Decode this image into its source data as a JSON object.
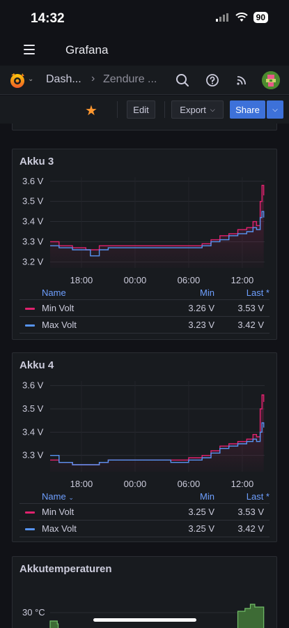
{
  "status_bar": {
    "time": "14:32",
    "battery": "90"
  },
  "app_bar": {
    "title": "Grafana"
  },
  "nav": {
    "crumb_1": "Dash...",
    "crumb_sep": "›",
    "crumb_2": "Zendure ..."
  },
  "toolbar": {
    "edit_label": "Edit",
    "export_label": "Export",
    "share_label": "Share"
  },
  "colors": {
    "min_series": "#e0226e",
    "max_series": "#5794f2",
    "temp_series": "#73bf69",
    "accent": "#3d71d9",
    "star": "#ff9830"
  },
  "panels": [
    {
      "title": "Akku 3",
      "legend": {
        "name_header": "Name",
        "min_header": "Min",
        "last_header": "Last *",
        "rows": [
          {
            "name": "Min Volt",
            "min": "3.26 V",
            "last": "3.53 V"
          },
          {
            "name": "Max Volt",
            "min": "3.23 V",
            "last": "3.42 V"
          }
        ]
      }
    },
    {
      "title": "Akku 4",
      "legend": {
        "name_header": "Name",
        "min_header": "Min",
        "last_header": "Last *",
        "rows": [
          {
            "name": "Min Volt",
            "min": "3.25 V",
            "last": "3.53 V"
          },
          {
            "name": "Max Volt",
            "min": "3.25 V",
            "last": "3.42 V"
          }
        ]
      }
    },
    {
      "title": "Akkutemperaturen"
    }
  ],
  "chart_data": [
    {
      "type": "line",
      "title": "Akku 3",
      "x_ticks": [
        "18:00",
        "00:00",
        "06:00",
        "12:00"
      ],
      "y_ticks": [
        "3.6 V",
        "3.5 V",
        "3.4 V",
        "3.3 V",
        "3.2 V"
      ],
      "ylim": [
        3.17,
        3.62
      ],
      "x_range_hours": [
        14.5,
        38.5
      ],
      "series": [
        {
          "name": "Min Volt",
          "x": [
            14.5,
            15.5,
            17,
            18.5,
            20,
            21,
            22,
            24,
            26,
            28,
            30,
            31.5,
            32.5,
            33.5,
            34.5,
            35.5,
            36.5,
            37.2,
            37.6,
            38,
            38.2,
            38.4
          ],
          "y": [
            3.3,
            3.28,
            3.27,
            3.26,
            3.28,
            3.28,
            3.28,
            3.28,
            3.28,
            3.28,
            3.28,
            3.29,
            3.31,
            3.33,
            3.34,
            3.36,
            3.37,
            3.4,
            3.38,
            3.5,
            3.58,
            3.53
          ]
        },
        {
          "name": "Max Volt",
          "x": [
            14.5,
            15.5,
            17,
            18.5,
            19,
            20,
            21,
            22,
            24,
            26,
            28,
            30,
            31.5,
            32.5,
            33.5,
            34.5,
            35.5,
            36.5,
            37.2,
            37.6,
            38,
            38.2,
            38.4
          ],
          "y": [
            3.28,
            3.27,
            3.26,
            3.26,
            3.23,
            3.26,
            3.27,
            3.27,
            3.27,
            3.27,
            3.27,
            3.27,
            3.28,
            3.3,
            3.31,
            3.33,
            3.34,
            3.35,
            3.37,
            3.36,
            3.42,
            3.45,
            3.42
          ]
        }
      ]
    },
    {
      "type": "line",
      "title": "Akku 4",
      "x_ticks": [
        "18:00",
        "00:00",
        "06:00",
        "12:00"
      ],
      "y_ticks": [
        "3.6 V",
        "3.5 V",
        "3.4 V",
        "3.3 V"
      ],
      "ylim": [
        3.23,
        3.62
      ],
      "x_range_hours": [
        14.5,
        38.5
      ],
      "series": [
        {
          "name": "Min Volt",
          "x": [
            14.5,
            15.5,
            17,
            18.5,
            20,
            21,
            22,
            24,
            26,
            28,
            30,
            31.5,
            32.5,
            33.5,
            34.5,
            35.5,
            36.5,
            37.2,
            37.6,
            38,
            38.2,
            38.4
          ],
          "y": [
            3.28,
            3.27,
            3.26,
            3.26,
            3.27,
            3.28,
            3.28,
            3.28,
            3.28,
            3.28,
            3.29,
            3.3,
            3.32,
            3.34,
            3.35,
            3.36,
            3.37,
            3.39,
            3.38,
            3.5,
            3.56,
            3.53
          ]
        },
        {
          "name": "Max Volt",
          "x": [
            14.5,
            15.5,
            17,
            18.5,
            20,
            21,
            22,
            24,
            26,
            28,
            30,
            31.5,
            32.5,
            33.5,
            34.5,
            35.5,
            36.5,
            37.2,
            37.6,
            38,
            38.2,
            38.4
          ],
          "y": [
            3.3,
            3.27,
            3.26,
            3.26,
            3.27,
            3.28,
            3.28,
            3.28,
            3.28,
            3.27,
            3.28,
            3.29,
            3.31,
            3.33,
            3.34,
            3.35,
            3.36,
            3.37,
            3.36,
            3.4,
            3.44,
            3.42
          ]
        }
      ]
    },
    {
      "type": "area",
      "title": "Akkutemperaturen",
      "y_ticks": [
        "30 °C"
      ],
      "series": [
        {
          "name": "",
          "x": [
            14.5,
            15.0,
            15.3,
            35.5,
            36.0,
            36.5,
            37.0,
            37.5,
            38.4
          ],
          "y": [
            1,
            1,
            0,
            0,
            1,
            1,
            1,
            1,
            1
          ]
        }
      ]
    }
  ]
}
